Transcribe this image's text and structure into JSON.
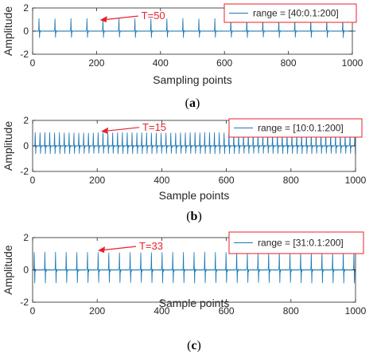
{
  "colors": {
    "signal": "#1f77b4",
    "annotation": "#e8222b",
    "axis": "#262626"
  },
  "chart_data": [
    {
      "type": "line",
      "panel_label": "(a)",
      "panel_letter": "a",
      "ylabel": "Amplitude",
      "xlabel": "Sampling points",
      "xlim": [
        0,
        1000
      ],
      "ylim": [
        -2,
        2
      ],
      "xticks": [
        0,
        200,
        400,
        600,
        800,
        1000
      ],
      "yticks": [
        -2,
        0,
        2
      ],
      "grid": false,
      "legend": {
        "placement": "top-right",
        "entries": [
          "range = [40:0.1:200]"
        ]
      },
      "annotation": {
        "text": "T=50",
        "x": 340,
        "y": 1.3
      },
      "series": [
        {
          "label": "range = [40:0.1:200]",
          "period": 50,
          "first_peak": 20,
          "peak_amplitude": 1.1,
          "trough_amplitude": -0.6,
          "x_range": [
            0,
            1010
          ]
        }
      ]
    },
    {
      "type": "line",
      "panel_label": "(b)",
      "panel_letter": "b",
      "ylabel": "Amplitude",
      "xlabel": "Sample points",
      "xlim": [
        0,
        1000
      ],
      "ylim": [
        -2,
        2
      ],
      "xticks": [
        0,
        200,
        400,
        600,
        800,
        1000
      ],
      "yticks": [
        -2,
        0,
        2
      ],
      "grid": false,
      "legend": {
        "placement": "top-right",
        "entries": [
          "range = [10:0.1:200]"
        ]
      },
      "annotation": {
        "text": "T=15",
        "x": 340,
        "y": 1.45
      },
      "series": [
        {
          "label": "range = [10:0.1:200]",
          "period": 15,
          "first_peak": 8,
          "peak_amplitude": 1.05,
          "trough_amplitude": -0.65,
          "x_range": [
            0,
            1000
          ]
        }
      ]
    },
    {
      "type": "line",
      "panel_label": "(c)",
      "panel_letter": "c",
      "ylabel": "Amplitude",
      "xlabel": "Sample points",
      "xlim": [
        0,
        1000
      ],
      "ylim": [
        -2,
        2
      ],
      "xticks": [
        0,
        200,
        400,
        600,
        800,
        1000
      ],
      "yticks": [
        -2,
        0,
        2
      ],
      "grid": false,
      "legend": {
        "placement": "top-right",
        "entries": [
          "range = [31:0.1:200]"
        ]
      },
      "annotation": {
        "text": "T=33",
        "x": 330,
        "y": 1.45
      },
      "series": [
        {
          "label": "range = [31:0.1:200]",
          "period": 33,
          "first_peak": 5,
          "peak_amplitude": 1.1,
          "trough_amplitude": -0.85,
          "x_range": [
            0,
            1000
          ]
        }
      ]
    }
  ]
}
